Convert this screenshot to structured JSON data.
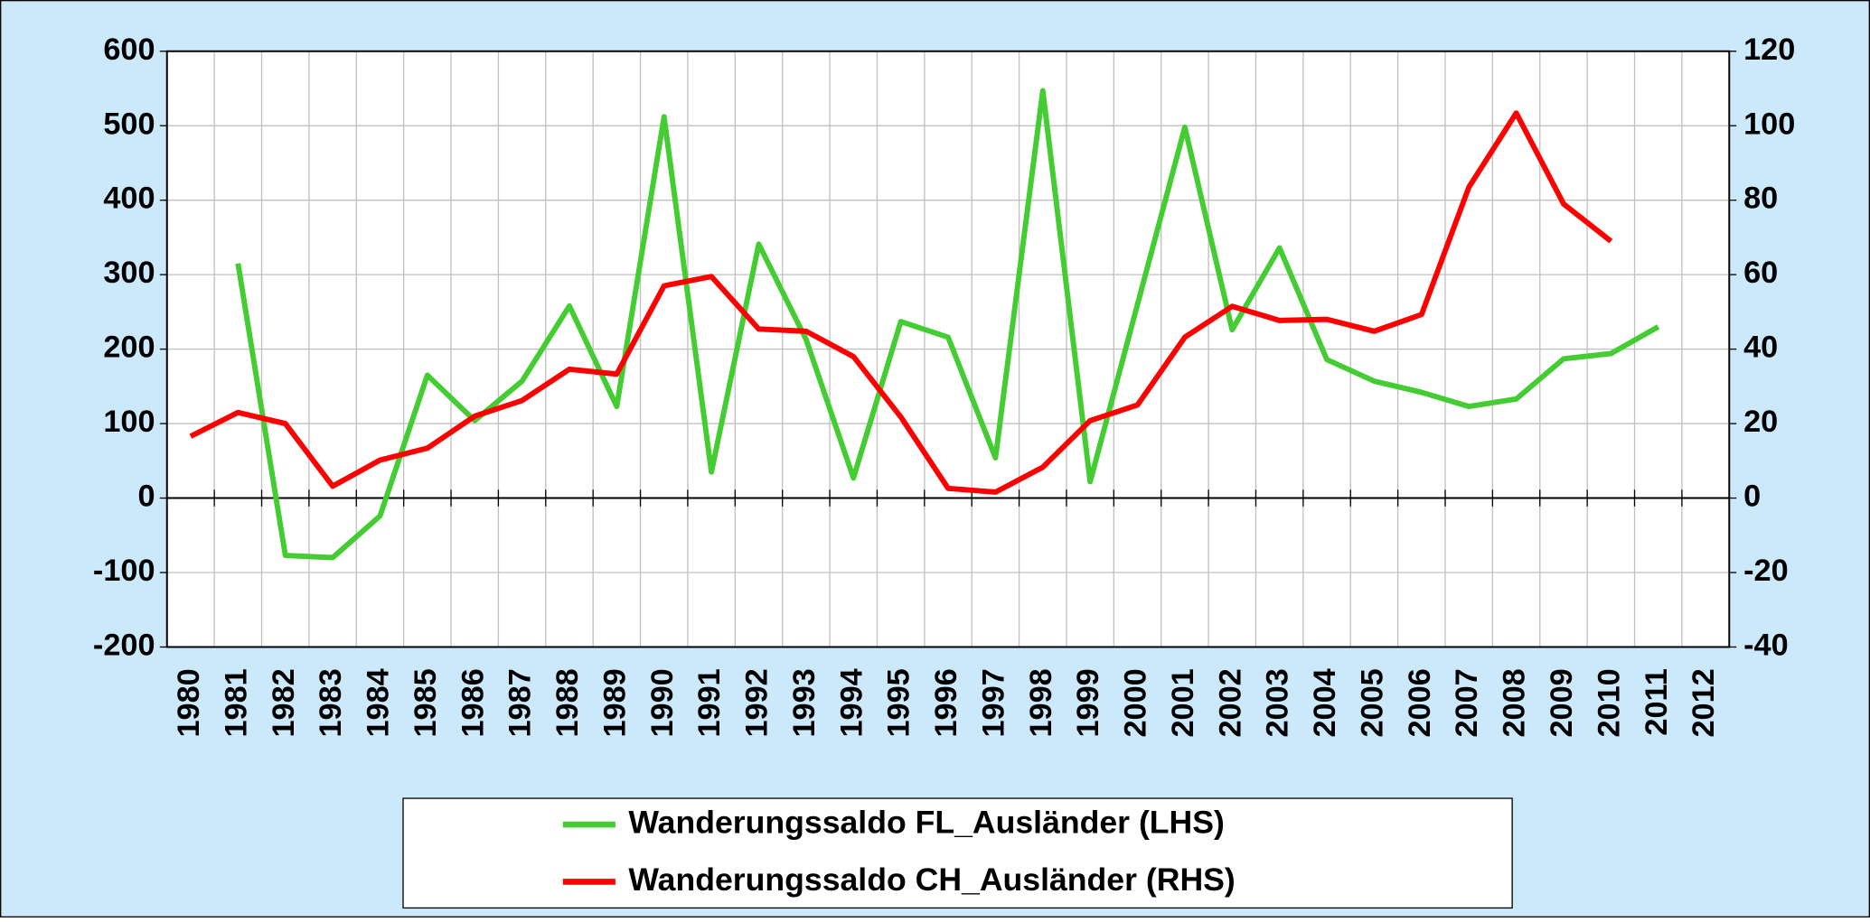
{
  "chart_data": {
    "type": "line",
    "categories": [
      "1980",
      "1981",
      "1982",
      "1983",
      "1984",
      "1985",
      "1986",
      "1987",
      "1988",
      "1989",
      "1990",
      "1991",
      "1992",
      "1993",
      "1994",
      "1995",
      "1996",
      "1997",
      "1998",
      "1999",
      "2000",
      "2001",
      "2002",
      "2003",
      "2004",
      "2005",
      "2006",
      "2007",
      "2008",
      "2009",
      "2010",
      "2011",
      "2012"
    ],
    "series": [
      {
        "name": "Wanderungssaldo FL_Ausländer (LHS)",
        "color": "#44cc33",
        "axis": "y",
        "values": [
          null,
          315,
          -77,
          -80,
          -24,
          165,
          104,
          157,
          258,
          123,
          512,
          35,
          341,
          213,
          27,
          237,
          216,
          54,
          547,
          22,
          260,
          498,
          226,
          336,
          186,
          157,
          142,
          123,
          133,
          187,
          194,
          230,
          null
        ]
      },
      {
        "name": "Wanderungssaldo CH_Ausländer (RHS)",
        "color": "#ff0000",
        "axis": "y2",
        "values": [
          16.6,
          23,
          20,
          3.2,
          10.2,
          13.4,
          22,
          26.2,
          34.6,
          33.3,
          57,
          59.5,
          45.4,
          44.8,
          38,
          21.8,
          2.6,
          1.6,
          8.3,
          20.8,
          25,
          43.2,
          51.5,
          47.7,
          48,
          44.8,
          49.3,
          83.5,
          103.4,
          79,
          69,
          null,
          null
        ]
      }
    ],
    "ylim": [
      -200,
      600
    ],
    "yticks": [
      -200,
      -100,
      0,
      100,
      200,
      300,
      400,
      500,
      600
    ],
    "y2lim": [
      -40,
      120
    ],
    "y2ticks": [
      -40,
      -20,
      0,
      20,
      40,
      60,
      80,
      100,
      120
    ],
    "grid": true,
    "legend": "bottom"
  }
}
